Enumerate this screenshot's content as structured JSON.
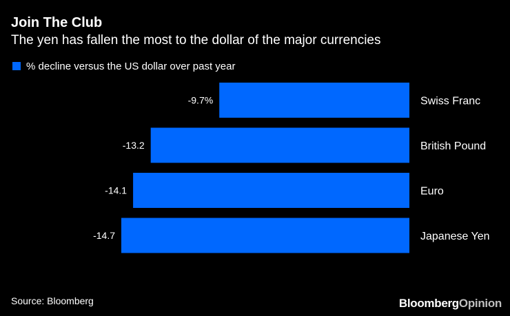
{
  "colors": {
    "background": "#000000",
    "bar": "#0068ff",
    "text": "#ffffff",
    "brand_secondary": "#bfbfbf"
  },
  "brand": {
    "primary": "Bloomberg",
    "secondary": "Opinion"
  },
  "source": "Source: Bloomberg",
  "chart_data": {
    "type": "bar",
    "orientation": "horizontal",
    "title": "Join The Club",
    "subtitle": "The yen has fallen the most to the dollar of the major currencies",
    "legend": "% decline versus the US dollar over past year",
    "legend_position": "top-left",
    "xlabel": "",
    "ylabel": "",
    "grid": false,
    "xlim": [
      -14.7,
      0
    ],
    "categories": [
      "Swiss Franc",
      "British Pound",
      "Euro",
      "Japanese Yen"
    ],
    "values": [
      -9.7,
      -13.2,
      -14.1,
      -14.7
    ],
    "value_labels": [
      "-9.7%",
      "-13.2",
      "-14.1",
      "-14.7"
    ]
  }
}
